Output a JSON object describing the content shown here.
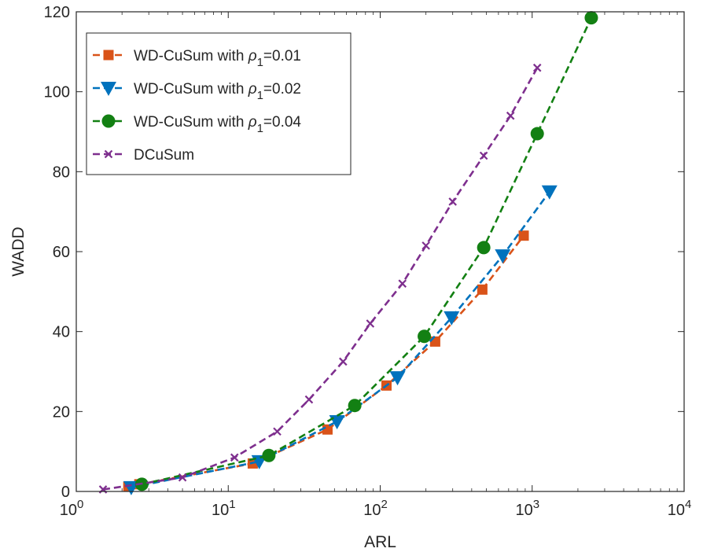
{
  "chart_data": {
    "type": "line",
    "xlabel": "ARL",
    "ylabel": "WADD",
    "x_scale": "log",
    "xlim": [
      1,
      10000
    ],
    "ylim": [
      0,
      120
    ],
    "x_ticks": [
      {
        "value": 1,
        "base": "10",
        "exp": "0"
      },
      {
        "value": 10,
        "base": "10",
        "exp": "1"
      },
      {
        "value": 100,
        "base": "10",
        "exp": "2"
      },
      {
        "value": 1000,
        "base": "10",
        "exp": "3"
      },
      {
        "value": 10000,
        "base": "10",
        "exp": "4"
      }
    ],
    "y_ticks": [
      "0",
      "20",
      "40",
      "60",
      "80",
      "100",
      "120"
    ],
    "grid": false,
    "legend_position": "top-left",
    "series": [
      {
        "name_main": "WD-CuSum with ",
        "name_sym": "ρ",
        "name_sub": "1",
        "name_tail": "=0.01",
        "color": "#D95319",
        "marker": "square",
        "points": [
          [
            2.2,
            1.2
          ],
          [
            2.6,
            1.8
          ],
          [
            14.5,
            7.0
          ],
          [
            45,
            15.5
          ],
          [
            110,
            26.5
          ],
          [
            230,
            37.5
          ],
          [
            470,
            50.5
          ],
          [
            880,
            64.0
          ]
        ]
      },
      {
        "name_main": "WD-CuSum with ",
        "name_sym": "ρ",
        "name_sub": "1",
        "name_tail": "=0.02",
        "color": "#0072BD",
        "marker": "triangle-down",
        "points": [
          [
            2.3,
            1.0
          ],
          [
            16,
            7.5
          ],
          [
            52,
            17.5
          ],
          [
            130,
            28.5
          ],
          [
            295,
            43.5
          ],
          [
            640,
            59.0
          ],
          [
            1300,
            75.0
          ]
        ]
      },
      {
        "name_main": "WD-CuSum with ",
        "name_sym": "ρ",
        "name_sub": "1",
        "name_tail": "=0.04",
        "color": "#138013",
        "marker": "circle",
        "points": [
          [
            2.7,
            1.8
          ],
          [
            18.5,
            9.0
          ],
          [
            68,
            21.5
          ],
          [
            195,
            38.8
          ],
          [
            480,
            61.0
          ],
          [
            1080,
            89.5
          ],
          [
            2450,
            118.5
          ]
        ]
      },
      {
        "name_main": "DCuSum",
        "name_sym": "",
        "name_sub": "",
        "name_tail": "",
        "color": "#7E2F8E",
        "marker": "x",
        "points": [
          [
            1.5,
            0.5
          ],
          [
            5,
            3.5
          ],
          [
            11,
            8.5
          ],
          [
            21,
            15.0
          ],
          [
            34,
            23.0
          ],
          [
            57,
            32.5
          ],
          [
            86,
            42.0
          ],
          [
            140,
            52.0
          ],
          [
            200,
            61.5
          ],
          [
            300,
            72.5
          ],
          [
            480,
            84.0
          ],
          [
            720,
            94.0
          ],
          [
            1080,
            106.0
          ]
        ]
      }
    ]
  }
}
